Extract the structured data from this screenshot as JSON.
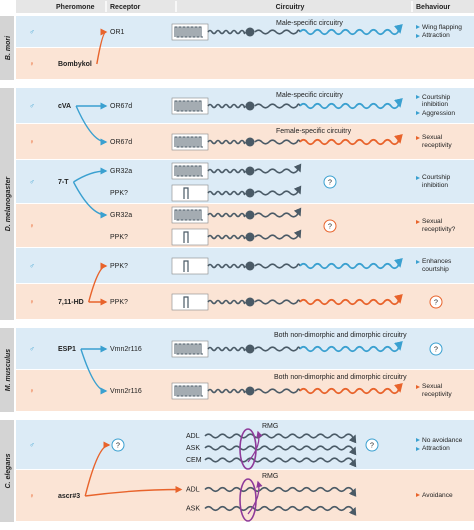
{
  "header": {
    "columns": [
      "Pheromone",
      "Receptor",
      "Circuitry",
      "Behaviour"
    ]
  },
  "groups": [
    {
      "species": "B. mori",
      "rows": [
        {
          "sex": "♂",
          "receptors": [
            "OR1"
          ],
          "circuit_label": "Male-specific circuitry",
          "behaviours": [
            "Wing flapping",
            "Attraction"
          ]
        },
        {
          "sex": "♀",
          "pheromone": "Bombykol"
        }
      ]
    },
    {
      "species": "D. melanogaster",
      "rows": [
        {
          "sex": "♂",
          "pheromone": "cVA",
          "receptors": [
            "OR67d"
          ],
          "circuit_label": "Male-specific circuitry",
          "behaviours": [
            "Courtship inhibition",
            "Aggression"
          ]
        },
        {
          "sex": "♀",
          "receptors": [
            "OR67d"
          ],
          "circuit_label": "Female-specific circuitry",
          "behaviours": [
            "Sexual receptivity"
          ]
        },
        {
          "sex": "♂",
          "pheromone": "7-T",
          "receptors": [
            "GR32a",
            "PPK?"
          ],
          "circuit_mark": "?",
          "behaviours": [
            "Courtship inhibition"
          ]
        },
        {
          "sex": "♀",
          "receptors": [
            "GR32a",
            "PPK?"
          ],
          "circuit_mark": "?",
          "behaviours": [
            "Sexual receptivity?"
          ]
        },
        {
          "sex": "♂",
          "receptors": [
            "PPK?"
          ],
          "behaviours": [
            "Enhances courtship"
          ]
        },
        {
          "sex": "♀",
          "pheromone": "7,11-HD",
          "receptors": [
            "PPK?"
          ],
          "behaviour_mark": "?"
        }
      ]
    },
    {
      "species": "M. musculus",
      "rows": [
        {
          "sex": "♂",
          "pheromone": "ESP1",
          "receptors": [
            "Vmn2r116"
          ],
          "circuit_label": "Both non-dimorphic and dimorphic circuitry",
          "behaviour_mark": "?"
        },
        {
          "sex": "♀",
          "receptors": [
            "Vmn2r116"
          ],
          "circuit_label": "Both non-dimorphic and dimorphic circuitry",
          "behaviours": [
            "Sexual receptivity"
          ]
        }
      ]
    },
    {
      "species": "C. elegans",
      "rows": [
        {
          "sex": "♂",
          "receptor_mark": "?",
          "neurons": [
            "ADL",
            "ASK",
            "CEM"
          ],
          "hub": "RMG",
          "circuit_mark": "?",
          "behaviours": [
            "No avoidance",
            "Attraction"
          ]
        },
        {
          "sex": "♀",
          "pheromone": "ascr#3",
          "neurons": [
            "ADL",
            "ASK"
          ],
          "hub": "RMG",
          "behaviours": [
            "Avoidance"
          ]
        }
      ]
    }
  ]
}
